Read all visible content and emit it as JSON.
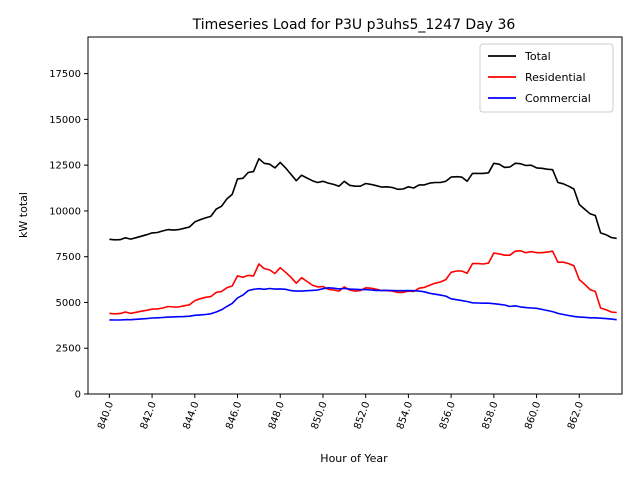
{
  "chart_data": {
    "type": "line",
    "title": "Timeseries Load for P3U p3uhs5_1247  Day 36",
    "xlabel": "Hour of Year",
    "ylabel": "kW total",
    "xlim": [
      839.0,
      864.0
    ],
    "ylim": [
      0,
      19500
    ],
    "x_ticks": [
      840,
      842,
      844,
      846,
      848,
      850,
      852,
      854,
      856,
      858,
      860,
      862
    ],
    "x_tick_labels": [
      "840.0",
      "842.0",
      "844.0",
      "846.0",
      "848.0",
      "850.0",
      "852.0",
      "854.0",
      "856.0",
      "858.0",
      "860.0",
      "862.0"
    ],
    "y_ticks": [
      0,
      2500,
      5000,
      7500,
      10000,
      12500,
      15000,
      17500
    ],
    "y_tick_labels": [
      "0",
      "2500",
      "5000",
      "7500",
      "10000",
      "12500",
      "15000",
      "17500"
    ],
    "legend_position": "top-right",
    "grid": false,
    "x": [
      840.0,
      840.25,
      840.5,
      840.75,
      841.0,
      841.25,
      841.5,
      841.75,
      842.0,
      842.25,
      842.5,
      842.75,
      843.0,
      843.25,
      843.5,
      843.75,
      844.0,
      844.25,
      844.5,
      844.75,
      845.0,
      845.25,
      845.5,
      845.75,
      846.0,
      846.25,
      846.5,
      846.75,
      847.0,
      847.25,
      847.5,
      847.75,
      848.0,
      848.25,
      848.5,
      848.75,
      849.0,
      849.25,
      849.5,
      849.75,
      850.0,
      850.25,
      850.5,
      850.75,
      851.0,
      851.25,
      851.5,
      851.75,
      852.0,
      852.25,
      852.5,
      852.75,
      853.0,
      853.25,
      853.5,
      853.75,
      854.0,
      854.25,
      854.5,
      854.75,
      855.0,
      855.25,
      855.5,
      855.75,
      856.0,
      856.25,
      856.5,
      856.75,
      857.0,
      857.25,
      857.5,
      857.75,
      858.0,
      858.25,
      858.5,
      858.75,
      859.0,
      859.25,
      859.5,
      859.75,
      860.0,
      860.25,
      860.5,
      860.75,
      861.0,
      861.25,
      861.5,
      861.75,
      862.0,
      862.25,
      862.5,
      862.75,
      863.0,
      863.25,
      863.5,
      863.75
    ],
    "series": [
      {
        "name": "Total",
        "color": "#000000",
        "values": [
          8450,
          8420,
          8430,
          8530,
          8460,
          8540,
          8620,
          8700,
          8800,
          8820,
          8910,
          8980,
          8950,
          8980,
          9050,
          9120,
          9400,
          9520,
          9620,
          9700,
          10100,
          10250,
          10650,
          10900,
          11750,
          11780,
          12100,
          12150,
          12850,
          12600,
          12550,
          12350,
          12650,
          12350,
          12000,
          11650,
          11950,
          11800,
          11650,
          11550,
          11620,
          11520,
          11450,
          11350,
          11620,
          11400,
          11350,
          11350,
          11500,
          11450,
          11380,
          11300,
          11320,
          11280,
          11180,
          11200,
          11320,
          11250,
          11420,
          11420,
          11520,
          11550,
          11550,
          11620,
          11850,
          11870,
          11850,
          11620,
          12050,
          12050,
          12050,
          12080,
          12600,
          12550,
          12380,
          12400,
          12600,
          12580,
          12480,
          12500,
          12350,
          12330,
          12280,
          12250,
          11550,
          11480,
          11350,
          11200,
          10350,
          10100,
          9850,
          9750,
          8800,
          8700,
          8550,
          8500
        ]
      },
      {
        "name": "Residential",
        "color": "#ff0000",
        "values": [
          4400,
          4380,
          4390,
          4480,
          4400,
          4460,
          4520,
          4570,
          4640,
          4650,
          4700,
          4780,
          4750,
          4760,
          4820,
          4870,
          5100,
          5200,
          5280,
          5320,
          5550,
          5600,
          5800,
          5900,
          6450,
          6380,
          6480,
          6450,
          7100,
          6850,
          6780,
          6580,
          6900,
          6650,
          6380,
          6050,
          6350,
          6150,
          5950,
          5850,
          5870,
          5720,
          5680,
          5620,
          5850,
          5680,
          5620,
          5650,
          5800,
          5780,
          5720,
          5650,
          5650,
          5620,
          5550,
          5550,
          5620,
          5600,
          5780,
          5820,
          5950,
          6050,
          6120,
          6250,
          6650,
          6720,
          6720,
          6600,
          7120,
          7120,
          7100,
          7150,
          7700,
          7650,
          7580,
          7580,
          7800,
          7820,
          7720,
          7780,
          7720,
          7720,
          7750,
          7800,
          7200,
          7200,
          7120,
          7000,
          6250,
          6000,
          5700,
          5600,
          4700,
          4600,
          4480,
          4450
        ]
      },
      {
        "name": "Commercial",
        "color": "#0000ff",
        "values": [
          4050,
          4040,
          4040,
          4060,
          4060,
          4080,
          4100,
          4120,
          4150,
          4160,
          4180,
          4200,
          4210,
          4220,
          4230,
          4250,
          4300,
          4320,
          4340,
          4380,
          4480,
          4600,
          4780,
          4950,
          5250,
          5400,
          5650,
          5720,
          5750,
          5720,
          5760,
          5730,
          5740,
          5720,
          5650,
          5620,
          5620,
          5640,
          5660,
          5680,
          5750,
          5800,
          5780,
          5740,
          5760,
          5730,
          5720,
          5700,
          5700,
          5680,
          5660,
          5660,
          5660,
          5650,
          5640,
          5640,
          5650,
          5640,
          5620,
          5580,
          5500,
          5450,
          5400,
          5350,
          5200,
          5150,
          5100,
          5050,
          4980,
          4970,
          4960,
          4960,
          4930,
          4900,
          4860,
          4780,
          4820,
          4760,
          4720,
          4700,
          4680,
          4620,
          4560,
          4500,
          4400,
          4340,
          4290,
          4240,
          4200,
          4190,
          4160,
          4160,
          4140,
          4120,
          4090,
          4060
        ]
      }
    ]
  }
}
